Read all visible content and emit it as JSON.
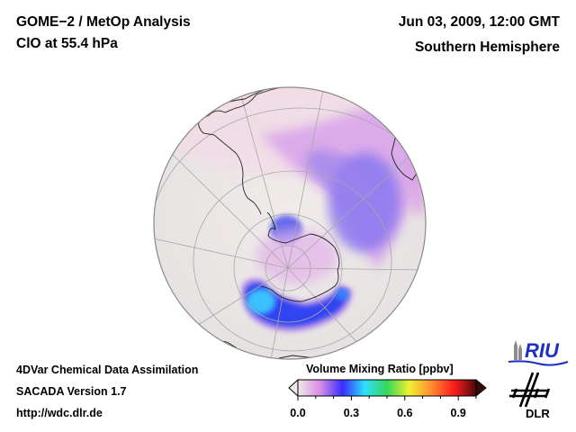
{
  "header": {
    "title_line1": "GOME−2 / MetOp Analysis",
    "title_line2": "ClO at 55.4 hPa",
    "date": "Jun 03, 2009, 12:00 GMT",
    "region": "Southern Hemisphere"
  },
  "footer": {
    "line1": "4DVar Chemical Data Assimilation",
    "line2": "SACADA Version 1.7",
    "line3": "http://wdc.dlr.de"
  },
  "map": {
    "projection": "orthographic",
    "hemisphere": "south",
    "ocean_color": "#ece6e6",
    "coast_color": "#222222",
    "grid_color": "#a8a8a8"
  },
  "colorbar": {
    "title": "Volume Mixing Ratio [ppbv]",
    "range": [
      0.0,
      1.0
    ],
    "ticks": [
      "0.0",
      "0.3",
      "0.6",
      "0.9"
    ],
    "tick_values": [
      0.0,
      0.3,
      0.6,
      0.9
    ],
    "colors": [
      "#f0e8e8",
      "#d98ee6",
      "#3a2cff",
      "#2ee0ff",
      "#35d85a",
      "#f0f030",
      "#ff8c30",
      "#ff1c1c",
      "#4a0a0a"
    ],
    "extend": "both"
  },
  "logos": {
    "riu_text": "RIU",
    "dlr_text": "DLR",
    "riu_color": "#1c2ec8"
  }
}
